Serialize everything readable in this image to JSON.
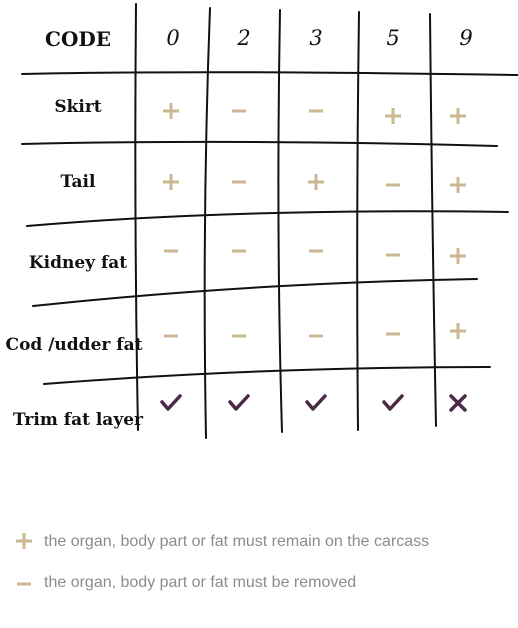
{
  "table": {
    "header_label": "CODE",
    "codes": [
      "0",
      "2",
      "3",
      "5",
      "9"
    ],
    "rows": [
      {
        "label": "Skirt",
        "marks": [
          "plus",
          "minus",
          "minus",
          "plus",
          "plus"
        ]
      },
      {
        "label": "Tail",
        "marks": [
          "plus",
          "minus",
          "plus",
          "minus",
          "plus"
        ]
      },
      {
        "label": "Kidney fat",
        "marks": [
          "minus",
          "minus",
          "minus",
          "minus",
          "plus"
        ]
      },
      {
        "label": "Cod /udder fat",
        "marks": [
          "minus",
          "minus",
          "minus",
          "minus",
          "plus"
        ]
      },
      {
        "label": "Trim fat layer",
        "marks": [
          "check",
          "check",
          "check",
          "check",
          "cross"
        ]
      }
    ]
  },
  "legend": {
    "plus_text": "the organ, body part or fat must remain on the carcass",
    "minus_text": "the organ, body part or fat must be removed"
  },
  "colors": {
    "mark_tan": "#cbb892",
    "mark_purple": "#4a2a45",
    "line": "#111111",
    "legend_text": "#8c8c8c"
  }
}
